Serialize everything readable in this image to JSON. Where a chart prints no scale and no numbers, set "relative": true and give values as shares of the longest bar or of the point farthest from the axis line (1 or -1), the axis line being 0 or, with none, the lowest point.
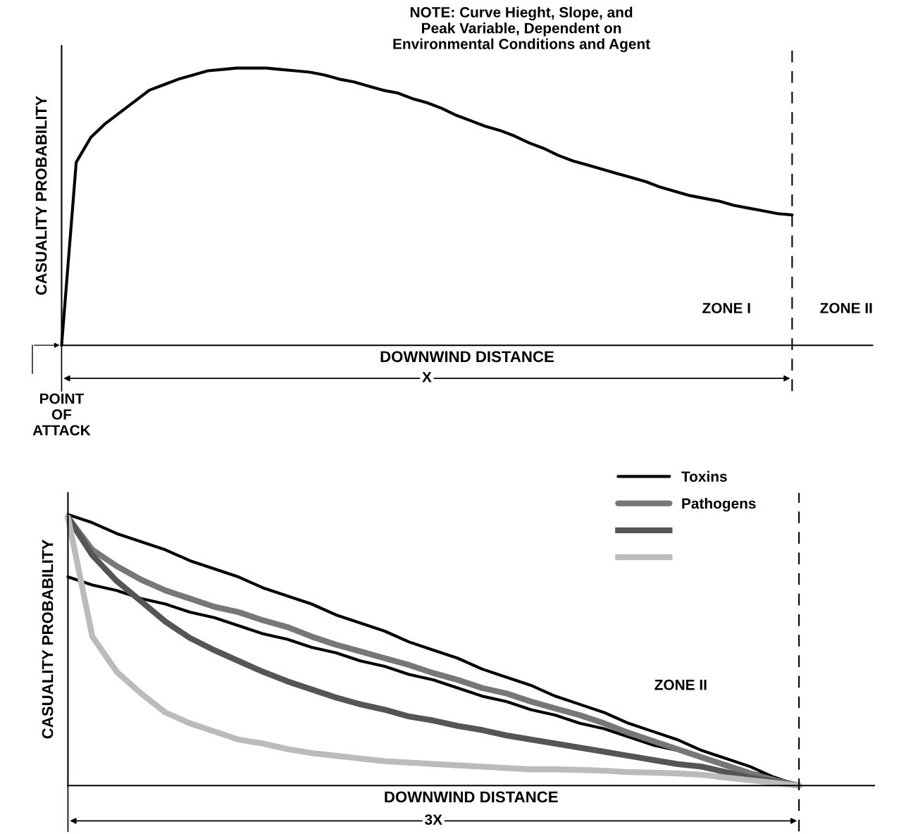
{
  "chart_data": [
    {
      "type": "line",
      "relative": true,
      "xlabel": "DOWNWIND DISTANCE",
      "ylabel": "CASUALITY PROBABILITY",
      "categories": [
        null,
        null,
        null,
        null,
        null,
        null,
        null,
        null,
        null,
        null,
        null,
        null,
        null,
        null,
        null,
        null,
        null,
        null,
        null,
        null,
        null,
        null,
        null,
        null,
        null,
        null,
        null,
        null,
        null,
        null,
        null,
        null,
        null,
        null,
        null,
        null,
        null,
        null,
        null,
        null,
        null,
        null,
        null,
        null,
        null,
        null,
        null,
        null,
        null,
        null,
        null
      ],
      "series": [
        {
          "color": "#000000",
          "values": [
            0,
            0.66,
            0.75,
            0.8,
            0.84,
            0.88,
            0.92,
            0.94,
            0.96,
            0.975,
            0.99,
            0.995,
            1.0,
            1.0,
            1.0,
            0.995,
            0.99,
            0.985,
            0.975,
            0.96,
            0.95,
            0.935,
            0.92,
            0.91,
            0.89,
            0.875,
            0.855,
            0.83,
            0.81,
            0.79,
            0.775,
            0.755,
            0.73,
            0.71,
            0.685,
            0.665,
            0.65,
            0.635,
            0.62,
            0.605,
            0.59,
            0.57,
            0.555,
            0.54,
            0.53,
            0.52,
            0.505,
            0.495,
            0.485,
            0.475,
            0.47
          ]
        }
      ],
      "ref_lines": [
        {
          "axis": "x",
          "color": "#000000",
          "line_style": "dashed"
        }
      ],
      "annotations": [
        "NOTE: Curve Hieght, Slope, and\nPeak Variable, Dependent on\nEnvironmental Conditions and Agent",
        "ZONE I",
        "ZONE II",
        "X",
        "POINT\nOF\nATTACK"
      ]
    },
    {
      "type": "line",
      "relative": true,
      "xlabel": "DOWNWIND DISTANCE",
      "ylabel": "CASUALITY PROBABILITY",
      "legend": "top right",
      "categories": [
        null,
        null,
        null,
        null,
        null,
        null,
        null,
        null,
        null,
        null,
        null,
        null,
        null,
        null,
        null,
        null,
        null,
        null,
        null,
        null,
        null,
        null,
        null,
        null,
        null,
        null,
        null,
        null,
        null,
        null,
        null
      ],
      "series": [
        {
          "name": "Toxins",
          "color": "#000000",
          "values": [
            1,
            0.97,
            0.93,
            0.9,
            0.87,
            0.83,
            0.8,
            0.77,
            0.73,
            0.7,
            0.67,
            0.63,
            0.6,
            0.57,
            0.53,
            0.5,
            0.47,
            0.43,
            0.4,
            0.37,
            0.33,
            0.3,
            0.27,
            0.23,
            0.2,
            0.17,
            0.13,
            0.1,
            0.07,
            0.03,
            0
          ]
        },
        {
          "color": "#000000",
          "values": [
            0.77,
            0.74,
            0.72,
            0.69,
            0.67,
            0.64,
            0.62,
            0.59,
            0.56,
            0.54,
            0.51,
            0.49,
            0.46,
            0.44,
            0.41,
            0.39,
            0.36,
            0.33,
            0.31,
            0.28,
            0.26,
            0.23,
            0.21,
            0.18,
            0.15,
            0.13,
            0.1,
            0.08,
            0.05,
            0.03,
            0
          ]
        },
        {
          "name": "Pathogens",
          "color": "#777777",
          "values": [
            0.99,
            0.87,
            0.81,
            0.76,
            0.72,
            0.69,
            0.66,
            0.64,
            0.61,
            0.585,
            0.55,
            0.52,
            0.495,
            0.47,
            0.445,
            0.415,
            0.39,
            0.36,
            0.34,
            0.31,
            0.285,
            0.26,
            0.23,
            0.195,
            0.165,
            0.135,
            0.105,
            0.075,
            0.045,
            0.02,
            0
          ]
        },
        {
          "color": "#555555",
          "values": [
            0.99,
            0.85,
            0.755,
            0.68,
            0.605,
            0.545,
            0.5,
            0.46,
            0.42,
            0.385,
            0.355,
            0.325,
            0.3,
            0.28,
            0.255,
            0.24,
            0.22,
            0.205,
            0.185,
            0.17,
            0.155,
            0.14,
            0.125,
            0.11,
            0.095,
            0.08,
            0.07,
            0.05,
            0.03,
            0.015,
            0
          ]
        },
        {
          "color": "#bbbbbb",
          "values": [
            0.99,
            0.55,
            0.42,
            0.34,
            0.27,
            0.23,
            0.2,
            0.17,
            0.155,
            0.135,
            0.12,
            0.11,
            0.1,
            0.09,
            0.085,
            0.08,
            0.075,
            0.07,
            0.065,
            0.06,
            0.06,
            0.058,
            0.055,
            0.05,
            0.048,
            0.045,
            0.04,
            0.03,
            0.02,
            0.01,
            0
          ]
        }
      ],
      "ref_lines": [
        {
          "axis": "x",
          "color": "#000000",
          "line_style": "dashed"
        }
      ],
      "annotations": [
        "ZONE II",
        "3X"
      ]
    }
  ]
}
